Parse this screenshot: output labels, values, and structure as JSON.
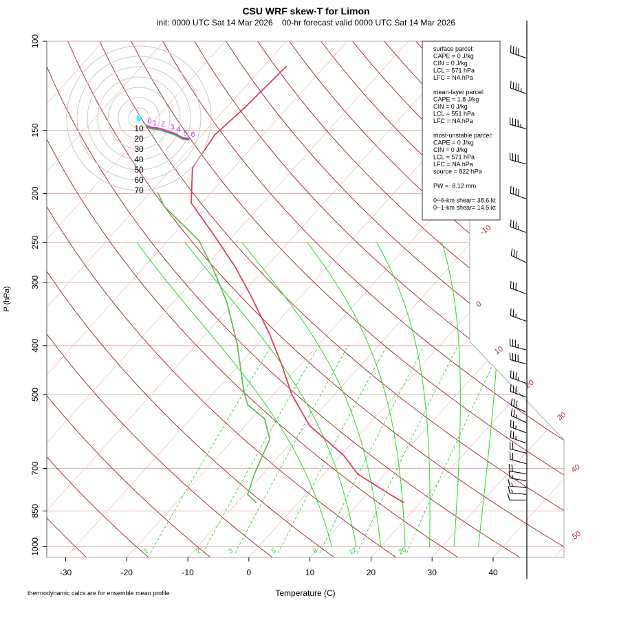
{
  "chart_data": {
    "type": "skewt",
    "title": "CSU WRF skew-T for Limon",
    "subtitle": "init: 0000 UTC Sat 14 Mar 2026    00-hr forecast valid 0000 UTC Sat 14 Mar 2026",
    "x_label": "Temperature (C)",
    "y_label": "P (hPa)",
    "footnote": "thermodynamic calcs are for ensemble mean profile",
    "ylim": [
      1050,
      100
    ],
    "log_y": true,
    "yticks": [
      100,
      150,
      200,
      250,
      300,
      400,
      500,
      700,
      850,
      1000
    ],
    "xlim": [
      -33.1,
      51.6
    ],
    "xticks": [
      -30,
      -20,
      -10,
      0,
      10,
      20,
      30,
      40
    ],
    "grid": true,
    "isotherms": [
      -100,
      -90,
      -80,
      -70,
      -60,
      -50,
      -40,
      -30,
      -20,
      -10,
      0,
      10,
      20,
      30,
      40,
      50
    ],
    "isotherm_labels": [
      -10,
      0,
      10,
      20,
      30,
      40,
      50
    ],
    "dry_adiabats": [
      -30,
      -20,
      -10,
      0,
      10,
      20,
      30,
      40,
      50,
      60,
      70,
      80,
      90,
      100,
      110,
      120,
      130,
      140,
      150,
      160,
      170,
      180,
      190,
      200
    ],
    "moist_adiabats": [
      12,
      16,
      20,
      24,
      28,
      32,
      36
    ],
    "mixing_ratios": [
      1,
      2,
      3,
      5,
      8,
      12,
      20
    ],
    "temperature": {
      "color": "#d9405a",
      "pressure": [
        819,
        788,
        718,
        660,
        576,
        500,
        435,
        380,
        318,
        280,
        240,
        209,
        178,
        153,
        135,
        112
      ],
      "values": [
        17.4,
        13.8,
        5.5,
        0.5,
        -9.5,
        -17.0,
        -23.2,
        -29.5,
        -38.4,
        -45.0,
        -53.7,
        -61.7,
        -66.7,
        -67.9,
        -67.0,
        -66.3
      ]
    },
    "dewpoint": {
      "color": "#66bb55",
      "pressure": [
        819,
        788,
        718,
        613,
        558,
        524,
        493,
        396,
        328,
        281,
        248,
        212,
        199
      ],
      "values": [
        -6.8,
        -9.5,
        -11.4,
        -14.0,
        -17.9,
        -22.7,
        -25.3,
        -33.5,
        -41.3,
        -48.6,
        -54.9,
        -65.7,
        -68.8
      ]
    },
    "hodograph": {
      "color": "#cc33cc",
      "rings": [
        10,
        20,
        30,
        40,
        50,
        60,
        70
      ],
      "u": [
        7,
        12,
        20,
        29,
        35,
        42,
        49
      ],
      "v": [
        -7,
        -9,
        -10,
        -13,
        -15,
        -19,
        -20
      ],
      "labels": [
        "0",
        "1",
        "2",
        "3",
        "4",
        "5",
        "6"
      ]
    },
    "wind_barbs": {
      "pressure": [
        108,
        127,
        149,
        175,
        205,
        239,
        274,
        316,
        358,
        408,
        435,
        475,
        506,
        542,
        568,
        595,
        624,
        653,
        685,
        718,
        741,
        764,
        788,
        809
      ],
      "speed": [
        40,
        45,
        45,
        40,
        40,
        35,
        30,
        30,
        25,
        35,
        40,
        35,
        30,
        30,
        25,
        25,
        25,
        20,
        20,
        20,
        15,
        15,
        15,
        10
      ],
      "direction": [
        290,
        290,
        285,
        285,
        290,
        290,
        295,
        290,
        290,
        285,
        285,
        290,
        290,
        295,
        295,
        290,
        290,
        285,
        285,
        280,
        280,
        275,
        275,
        270
      ]
    },
    "info_box": [
      [
        "surface parcel:",
        "CAPE = 0 J/kg",
        "CIN = 0 J/kg",
        "LCL = 571 hPa",
        "LFC = NA hPa"
      ],
      [
        "mean-layer parcel:",
        "CAPE = 1.8 J/kg",
        "CIN = 0 J/kg",
        "LCL = 551 hPa",
        "LFC = NA hPa"
      ],
      [
        "most-unstable parcel:",
        "CAPE = 0 J/kg",
        "CIN = 0 J/kg",
        "LCL = 571 hPa",
        "LFC = NA hPa",
        "source = 822 hPa"
      ],
      [
        "PW =  8.12 mm"
      ],
      [
        "0--6-km shear= 38.6 kt",
        "0--1-km shear= 14.5 kt"
      ]
    ]
  }
}
